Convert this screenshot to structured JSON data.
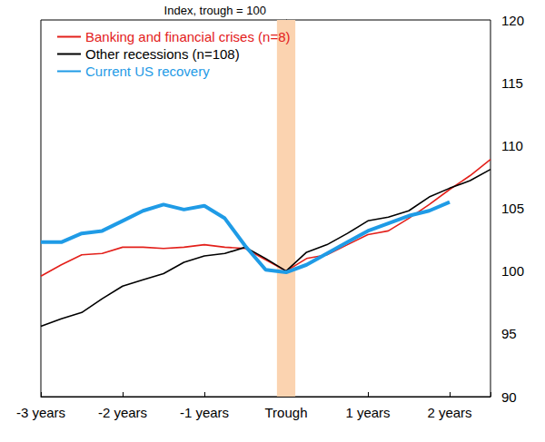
{
  "chart_data": {
    "type": "line",
    "ylabel": "Index, trough = 100",
    "x": [
      -12,
      -11,
      -10,
      -9,
      -8,
      -7,
      -6,
      -5,
      -4,
      -3,
      -2,
      -1,
      0,
      1,
      2,
      3,
      4,
      5,
      6,
      7,
      8,
      9,
      10
    ],
    "xlim": [
      -12,
      10
    ],
    "xticks": [
      {
        "value": -12,
        "label": "-3 years"
      },
      {
        "value": -8,
        "label": "-2 years"
      },
      {
        "value": -4,
        "label": "-1 years"
      },
      {
        "value": 0,
        "label": "Trough"
      },
      {
        "value": 4,
        "label": "1 years"
      },
      {
        "value": 8,
        "label": "2 years"
      }
    ],
    "ylim": [
      90,
      120
    ],
    "yticks": [
      90,
      95,
      100,
      105,
      110,
      115,
      120
    ],
    "grid": false,
    "legend": "upper left",
    "marker": "none",
    "line_style": "solid",
    "series": [
      {
        "name": "Banking and financial crises (n=8)",
        "color": "#e3201b",
        "values": [
          99.6,
          100.5,
          101.3,
          101.4,
          101.9,
          101.9,
          101.8,
          101.9,
          102.1,
          101.9,
          101.8,
          100.9,
          100.0,
          101.0,
          101.3,
          102.1,
          102.9,
          103.2,
          104.2,
          105.3,
          106.5,
          107.6,
          108.9
        ]
      },
      {
        "name": "Other recessions (n=108)",
        "color": "#000000",
        "values": [
          95.6,
          96.2,
          96.7,
          97.8,
          98.8,
          99.3,
          99.8,
          100.7,
          101.2,
          101.4,
          101.9,
          101.0,
          100.0,
          101.5,
          102.1,
          103.0,
          104.0,
          104.3,
          104.8,
          105.9,
          106.6,
          107.2,
          108.1
        ]
      },
      {
        "name": "Current US recovery",
        "color": "#1f9be6",
        "values": [
          102.3,
          102.3,
          103.0,
          103.2,
          104.0,
          104.8,
          105.3,
          104.9,
          105.2,
          104.2,
          102.0,
          100.1,
          99.9,
          100.5,
          101.4,
          102.3,
          103.2,
          103.8,
          104.4,
          104.8,
          105.5,
          null,
          null
        ]
      }
    ]
  }
}
